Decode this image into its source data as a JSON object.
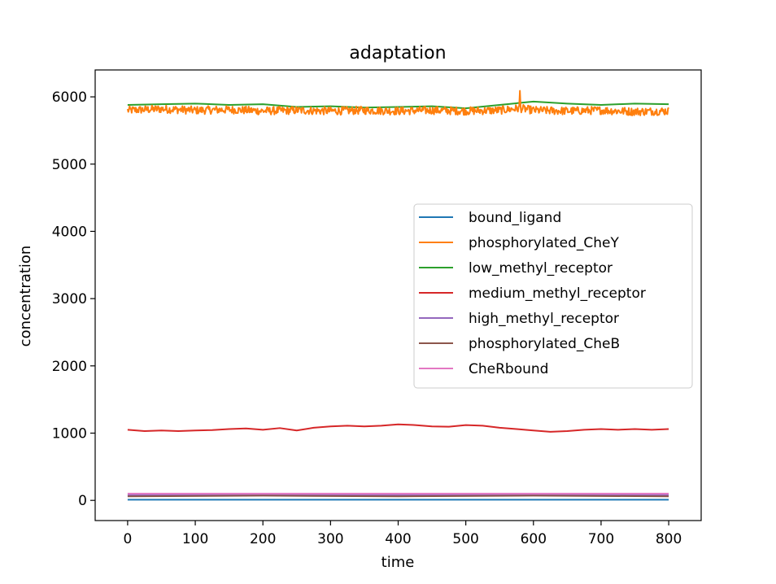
{
  "chart_data": {
    "type": "line",
    "title": "adaptation",
    "xlabel": "time",
    "ylabel": "concentration",
    "xlim": [
      -48,
      848
    ],
    "ylim": [
      -300,
      6400
    ],
    "xticks": [
      0,
      100,
      200,
      300,
      400,
      500,
      600,
      700,
      800
    ],
    "yticks": [
      0,
      1000,
      2000,
      3000,
      4000,
      5000,
      6000
    ],
    "grid": false,
    "legend_position": "center-right",
    "series": [
      {
        "name": "bound_ligand",
        "color": "#1f77b4",
        "x": [
          0,
          800
        ],
        "y": [
          10,
          10
        ]
      },
      {
        "name": "phosphorylated_CheY",
        "color": "#ff7f0e",
        "noise": 60,
        "x": [
          0,
          50,
          100,
          150,
          200,
          250,
          300,
          350,
          400,
          450,
          500,
          550,
          580,
          600,
          650,
          700,
          750,
          800
        ],
        "y": [
          5800,
          5820,
          5800,
          5810,
          5790,
          5800,
          5790,
          5800,
          5790,
          5800,
          5790,
          5800,
          5830,
          5800,
          5790,
          5800,
          5780,
          5790
        ]
      },
      {
        "name": "low_methyl_receptor",
        "color": "#2ca02c",
        "x": [
          0,
          50,
          100,
          150,
          200,
          250,
          300,
          350,
          400,
          450,
          500,
          550,
          600,
          650,
          700,
          750,
          800
        ],
        "y": [
          5880,
          5890,
          5900,
          5880,
          5890,
          5850,
          5860,
          5840,
          5850,
          5860,
          5830,
          5880,
          5930,
          5900,
          5880,
          5900,
          5890
        ]
      },
      {
        "name": "medium_methyl_receptor",
        "color": "#d62728",
        "x": [
          0,
          25,
          50,
          75,
          100,
          125,
          150,
          175,
          200,
          225,
          250,
          275,
          300,
          325,
          350,
          375,
          400,
          425,
          450,
          475,
          500,
          525,
          550,
          575,
          600,
          625,
          650,
          675,
          700,
          725,
          750,
          775,
          800
        ],
        "y": [
          1050,
          1030,
          1040,
          1030,
          1040,
          1045,
          1060,
          1070,
          1050,
          1075,
          1040,
          1080,
          1100,
          1110,
          1100,
          1110,
          1130,
          1120,
          1100,
          1095,
          1120,
          1110,
          1080,
          1060,
          1040,
          1020,
          1030,
          1050,
          1060,
          1050,
          1060,
          1050,
          1060
        ]
      },
      {
        "name": "high_methyl_receptor",
        "color": "#9467bd",
        "x": [
          0,
          800
        ],
        "y": [
          80,
          80
        ]
      },
      {
        "name": "phosphorylated_CheB",
        "color": "#8c564b",
        "x": [
          0,
          200,
          400,
          600,
          800
        ],
        "y": [
          60,
          70,
          60,
          70,
          60
        ]
      },
      {
        "name": "CheRbound",
        "color": "#e377c2",
        "x": [
          0,
          800
        ],
        "y": [
          100,
          100
        ]
      }
    ]
  }
}
